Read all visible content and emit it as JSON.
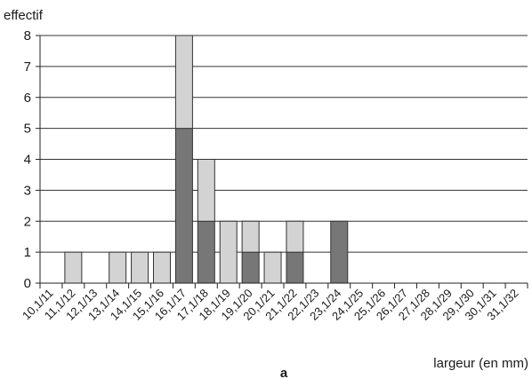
{
  "chart_data": {
    "type": "bar",
    "stacked": true,
    "title": "",
    "ylabel": "effectif",
    "xlabel": "largeur (en mm)",
    "panel_label": "a",
    "ylim": [
      0,
      8
    ],
    "yticks": [
      0,
      1,
      2,
      3,
      4,
      5,
      6,
      7,
      8
    ],
    "grid": "horizontal",
    "legend": "none",
    "categories": [
      "10,1/11",
      "11,1/12",
      "12,1/13",
      "13,1/14",
      "14,1/15",
      "15,1/16",
      "16,1/17",
      "17,1/18",
      "18,1/19",
      "19,1/20",
      "20,1/21",
      "21,1/22",
      "22,1/23",
      "23,1/24",
      "24,1/25",
      "25,1/26",
      "26,1/27",
      "27,1/28",
      "28,1/29",
      "29,1/30",
      "30,1/31",
      "31,1/32"
    ],
    "series": [
      {
        "color": "#777777",
        "values": [
          0,
          0,
          0,
          0,
          0,
          0,
          5,
          2,
          0,
          1,
          0,
          1,
          0,
          2,
          0,
          0,
          0,
          0,
          0,
          0,
          0,
          0
        ]
      },
      {
        "color": "#d3d3d3",
        "values": [
          0,
          1,
          0,
          1,
          1,
          1,
          3,
          2,
          2,
          1,
          1,
          1,
          0,
          0,
          0,
          0,
          0,
          0,
          0,
          0,
          0,
          0
        ]
      }
    ]
  }
}
